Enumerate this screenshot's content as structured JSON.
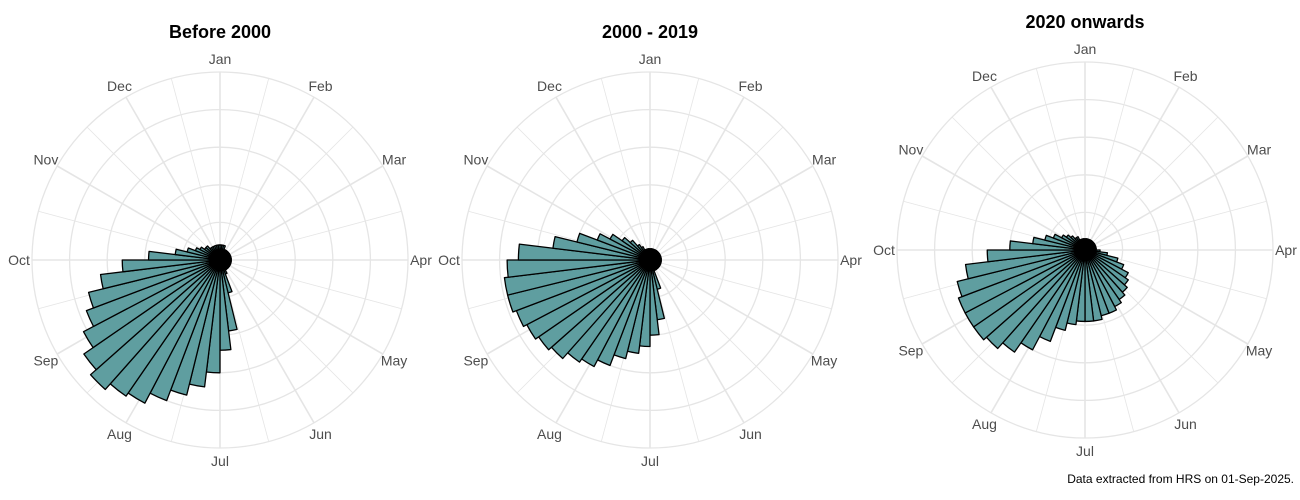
{
  "caption": "Data extracted from HRS on 01-Sep-2025.",
  "colors": {
    "bar_fill": "#5f9ea0",
    "bar_stroke": "#000000",
    "grid": "#e5e5e5",
    "label": "#4d4d4d"
  },
  "chart_data": [
    {
      "type": "polar-bar",
      "title": "Before 2000",
      "month_labels": [
        "Jan",
        "Feb",
        "Mar",
        "Apr",
        "May",
        "Jun",
        "Jul",
        "Aug",
        "Sep",
        "Oct",
        "Nov",
        "Dec"
      ],
      "bin_unit": "week of year",
      "bins": 52,
      "values": [
        0.4,
        0.4,
        0.4,
        0.3,
        0.3,
        0.3,
        0.3,
        0.3,
        0.3,
        0.3,
        0.3,
        0.3,
        0.3,
        0.3,
        0.3,
        0.3,
        0.3,
        0.3,
        0.3,
        0.3,
        0.3,
        0.3,
        0.4,
        0.9,
        1.9,
        2.4,
        3.0,
        3.4,
        3.7,
        4.0,
        4.3,
        4.4,
        4.6,
        4.4,
        4.1,
        3.8,
        3.6,
        3.2,
        2.6,
        1.9,
        1.2,
        0.9,
        0.7,
        0.6,
        0.5,
        0.5,
        0.4,
        0.4,
        0.4,
        0.4,
        0.4,
        0.4
      ],
      "rlim": [
        0,
        5
      ]
    },
    {
      "type": "polar-bar",
      "title": "2000 - 2019",
      "month_labels": [
        "Jan",
        "Feb",
        "Mar",
        "Apr",
        "May",
        "Jun",
        "Jul",
        "Aug",
        "Sep",
        "Oct",
        "Nov",
        "Dec"
      ],
      "bin_unit": "week of year",
      "bins": 52,
      "values": [
        0.3,
        0.3,
        0.3,
        0.3,
        0.3,
        0.3,
        0.3,
        0.3,
        0.3,
        0.3,
        0.3,
        0.3,
        0.3,
        0.3,
        0.3,
        0.3,
        0.3,
        0.3,
        0.3,
        0.3,
        0.3,
        0.3,
        0.3,
        0.8,
        1.6,
        2.0,
        2.3,
        2.5,
        2.7,
        3.0,
        3.2,
        3.3,
        3.5,
        3.6,
        3.7,
        3.8,
        3.9,
        3.9,
        3.8,
        3.5,
        2.6,
        2.0,
        1.5,
        1.2,
        0.9,
        0.7,
        0.5,
        0.4,
        0.3,
        0.3,
        0.3,
        0.3
      ],
      "rlim": [
        0,
        5
      ]
    },
    {
      "type": "polar-bar",
      "title": "2020 onwards",
      "month_labels": [
        "Jan",
        "Feb",
        "Mar",
        "Apr",
        "May",
        "Jun",
        "Jul",
        "Aug",
        "Sep",
        "Oct",
        "Nov",
        "Dec"
      ],
      "bin_unit": "week of year",
      "bins": 52,
      "values": [
        0.3,
        0.3,
        0.3,
        0.3,
        0.3,
        0.3,
        0.3,
        0.3,
        0.3,
        0.3,
        0.3,
        0.3,
        0.3,
        0.4,
        0.6,
        0.9,
        1.1,
        1.3,
        1.4,
        1.5,
        1.6,
        1.7,
        1.8,
        1.8,
        1.9,
        1.9,
        1.9,
        2.0,
        2.2,
        2.6,
        3.0,
        3.3,
        3.5,
        3.6,
        3.6,
        3.6,
        3.5,
        3.2,
        2.6,
        2.0,
        1.4,
        1.1,
        0.9,
        0.7,
        0.6,
        0.5,
        0.4,
        0.4,
        0.3,
        0.3,
        0.3,
        0.3
      ],
      "rlim": [
        0,
        5
      ]
    }
  ]
}
